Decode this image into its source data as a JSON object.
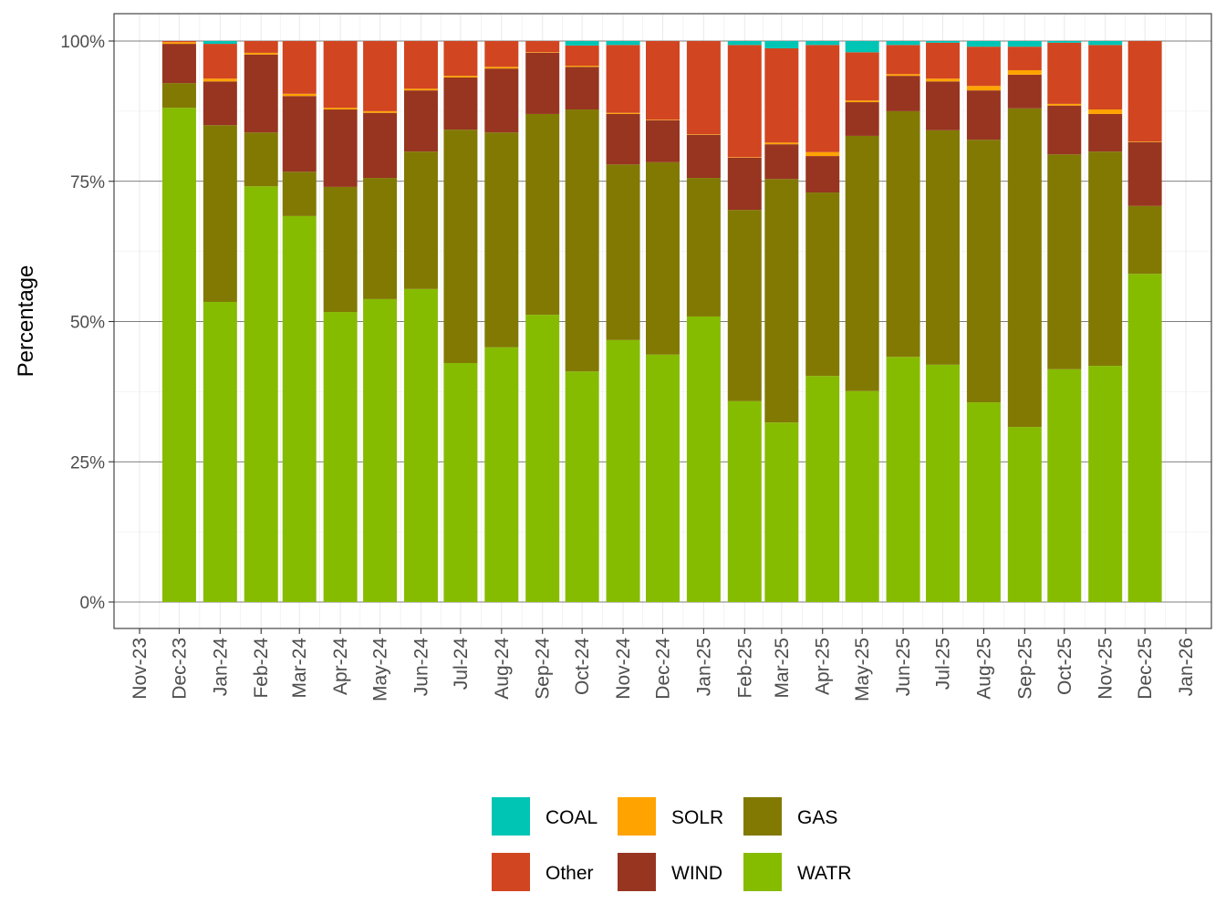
{
  "chart_data": {
    "type": "bar",
    "stacked": true,
    "normalized": true,
    "title": "",
    "xlabel": "",
    "ylabel": "Percentage",
    "ylim": [
      0,
      100
    ],
    "y_ticks": [
      "0%",
      "25%",
      "50%",
      "75%",
      "100%"
    ],
    "x_ticks": [
      "Nov-23",
      "Dec-23",
      "Jan-24",
      "Feb-24",
      "Mar-24",
      "Apr-24",
      "May-24",
      "Jun-24",
      "Jul-24",
      "Aug-24",
      "Sep-24",
      "Oct-24",
      "Nov-24",
      "Dec-24",
      "Jan-25",
      "Feb-25",
      "Mar-25",
      "Apr-25",
      "May-25",
      "Jun-25",
      "Jul-25",
      "Aug-25",
      "Sep-25",
      "Oct-25",
      "Nov-25",
      "Dec-25",
      "Jan-26"
    ],
    "grid": true,
    "legend_position": "bottom",
    "categories": [
      "2023-12",
      "2024-01",
      "2024-02",
      "2024-03",
      "2024-04",
      "2024-05",
      "2024-06",
      "2024-07",
      "2024-08",
      "2024-09",
      "2024-10",
      "2024-11",
      "2024-12",
      "2025-01",
      "2025-02",
      "2025-03",
      "2025-04",
      "2025-05",
      "2025-06",
      "2025-07",
      "2025-08",
      "2025-09",
      "2025-10",
      "2025-11",
      "2025-12"
    ],
    "series": [
      {
        "name": "WATR",
        "color": "#86BC00",
        "values": [
          88.1,
          53.5,
          74.1,
          68.8,
          51.7,
          54.0,
          55.8,
          42.6,
          45.4,
          51.2,
          41.1,
          46.7,
          44.1,
          50.9,
          35.8,
          32.0,
          40.3,
          37.6,
          43.7,
          42.3,
          35.6,
          31.2,
          41.5,
          42.1,
          58.5
        ]
      },
      {
        "name": "GAS",
        "color": "#827903",
        "values": [
          4.4,
          31.5,
          9.6,
          7.9,
          22.3,
          21.6,
          24.5,
          41.6,
          38.3,
          35.8,
          46.7,
          31.3,
          34.3,
          24.7,
          34.1,
          43.4,
          32.7,
          45.5,
          43.8,
          41.8,
          46.8,
          56.8,
          38.3,
          38.2,
          12.1
        ]
      },
      {
        "name": "WIND",
        "color": "#973520",
        "values": [
          7.0,
          7.8,
          13.9,
          13.5,
          13.8,
          11.6,
          10.9,
          9.3,
          11.4,
          10.9,
          7.6,
          9.0,
          7.5,
          7.7,
          9.3,
          6.2,
          6.5,
          6.0,
          6.3,
          8.7,
          8.8,
          6.0,
          8.7,
          6.7,
          11.4
        ]
      },
      {
        "name": "SOLR",
        "color": "#FFA300",
        "values": [
          0.3,
          0.5,
          0.3,
          0.4,
          0.3,
          0.3,
          0.3,
          0.3,
          0.3,
          0.1,
          0.2,
          0.2,
          0.1,
          0.1,
          0.1,
          0.3,
          0.7,
          0.3,
          0.3,
          0.5,
          0.8,
          0.8,
          0.3,
          0.8,
          0.1
        ]
      },
      {
        "name": "Other",
        "color": "#D24521",
        "values": [
          0.2,
          6.2,
          2.1,
          9.4,
          11.9,
          12.5,
          8.5,
          6.2,
          4.6,
          2.0,
          3.6,
          12.1,
          14.0,
          16.6,
          20.0,
          16.8,
          19.1,
          8.6,
          5.2,
          6.4,
          7.0,
          4.2,
          10.9,
          11.5,
          17.9
        ]
      },
      {
        "name": "COAL",
        "color": "#00C5B5",
        "values": [
          0,
          0.5,
          0,
          0,
          0,
          0,
          0,
          0,
          0,
          0,
          0.8,
          0.7,
          0,
          0,
          0.7,
          1.3,
          0.7,
          2.0,
          0.7,
          0.3,
          1.0,
          1.0,
          0.3,
          0.7,
          0
        ]
      }
    ],
    "legend": [
      "COAL",
      "SOLR",
      "GAS",
      "Other",
      "WIND",
      "WATR"
    ]
  }
}
